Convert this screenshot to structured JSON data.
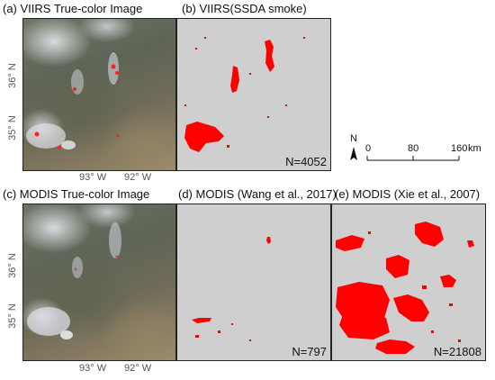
{
  "panels": {
    "a": {
      "title": "(a) VIIRS True-color Image"
    },
    "b": {
      "title": "(b) VIIRS(SSDA smoke)",
      "count": "N=4052"
    },
    "c": {
      "title": "(c) MODIS True-color Image"
    },
    "d": {
      "title": "(d) MODIS (Wang et al., 2017)",
      "count": "N=797"
    },
    "e": {
      "title": "(e) MODIS (Xie et al., 2007)",
      "count": "N=21808"
    }
  },
  "axes": {
    "lat_36": "36° N",
    "lat_35": "35° N",
    "lon_93": "93° W",
    "lon_92": "92° W"
  },
  "north_arrow": {
    "label": "N"
  },
  "scale_bar": {
    "ticks": [
      "0",
      "80",
      "160"
    ],
    "unit": "km"
  },
  "colors": {
    "smoke": "#ff0000",
    "background": "#cfcfcf",
    "fire": "#ff2020"
  }
}
